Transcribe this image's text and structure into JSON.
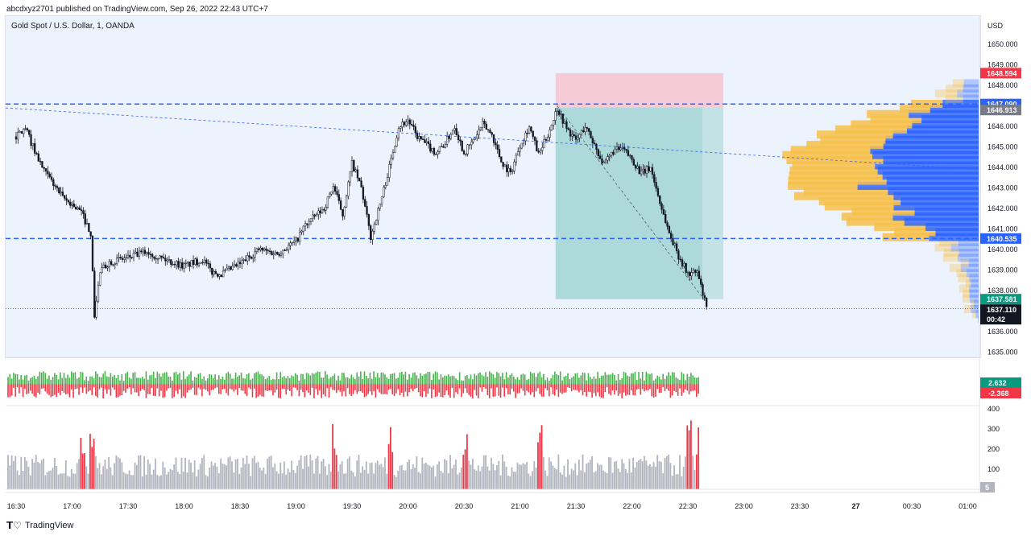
{
  "header": {
    "publisher_line": "abcdxyz2701 published on TradingView.com, Sep 26, 2022 22:43 UTC+7",
    "symbol_line": "Gold Spot / U.S. Dollar, 1, OANDA",
    "currency": "USD"
  },
  "footer": {
    "brand": "TradingView",
    "logo": "tradingview-logo-icon"
  },
  "colors": {
    "up": "#089981",
    "down": "#f23645",
    "candle": "#131722",
    "dashed_level": "#2962ff",
    "profile_up": "#2962ff",
    "profile_down": "#f7c04a",
    "stop_zone": "#f5c6d3",
    "target_zone": "#9ed3d3",
    "bg": "#edf3fd"
  },
  "price_axis": {
    "ticks": [
      "1650.000",
      "1649.000",
      "1648.000",
      "1647.000",
      "1646.000",
      "1645.000",
      "1644.000",
      "1643.000",
      "1642.000",
      "1641.000",
      "1640.000",
      "1639.000",
      "1638.000",
      "1637.000",
      "1636.000",
      "1635.000"
    ],
    "tags": [
      {
        "label": "1648.594",
        "color": "#f23645"
      },
      {
        "label": "1647.090",
        "color": "#2962ff"
      },
      {
        "label": "1646.913",
        "color": "#787b86"
      },
      {
        "label": "1640.535",
        "color": "#2962ff"
      },
      {
        "label": "1637.581",
        "color": "#089981"
      },
      {
        "label": "1637.110",
        "color": "#131722"
      },
      {
        "label": "00:42",
        "color": "#131722"
      }
    ]
  },
  "time_axis": [
    "16:30",
    "17:00",
    "17:30",
    "18:00",
    "18:30",
    "19:00",
    "19:30",
    "20:00",
    "20:30",
    "21:00",
    "21:30",
    "22:00",
    "22:30",
    "23:00",
    "23:30",
    "27",
    "00:30",
    "01:00"
  ],
  "oscillator": {
    "pos_label": "2.632",
    "neg_label": "-2.368"
  },
  "volume_axis": {
    "ticks": [
      "400",
      "300",
      "200",
      "100"
    ],
    "badge": "5"
  },
  "chart_data": {
    "type": "candlestick",
    "symbol": "Gold Spot / U.S. Dollar, 1, OANDA",
    "interval": "1",
    "ylim": [
      1635.0,
      1650.5
    ],
    "last_price": 1637.11,
    "levels": [
      {
        "kind": "horizontal_dashed",
        "price": 1647.09
      },
      {
        "kind": "horizontal_dashed",
        "price": 1640.535
      },
      {
        "kind": "last_price_dotted",
        "price": 1637.11
      }
    ],
    "short_position": {
      "entry": 1646.913,
      "stop": 1648.594,
      "target": 1637.581,
      "from_time": "21:20",
      "to_time": "22:45"
    },
    "price_path": [
      [
        "16:30",
        1645.5
      ],
      [
        "16:35",
        1645.9
      ],
      [
        "16:40",
        1644.8
      ],
      [
        "16:45",
        1643.8
      ],
      [
        "16:50",
        1643.2
      ],
      [
        "16:55",
        1642.5
      ],
      [
        "17:00",
        1642.2
      ],
      [
        "17:05",
        1641.8
      ],
      [
        "17:10",
        1640.8
      ],
      [
        "17:12",
        1636.8
      ],
      [
        "17:15",
        1638.9
      ],
      [
        "17:20",
        1639.4
      ],
      [
        "17:30",
        1639.6
      ],
      [
        "17:40",
        1639.9
      ],
      [
        "17:50",
        1639.5
      ],
      [
        "18:00",
        1639.2
      ],
      [
        "18:10",
        1639.5
      ],
      [
        "18:15",
        1638.9
      ],
      [
        "18:20",
        1638.8
      ],
      [
        "18:30",
        1639.3
      ],
      [
        "18:40",
        1640.0
      ],
      [
        "18:50",
        1639.8
      ],
      [
        "19:00",
        1640.4
      ],
      [
        "19:05",
        1641.2
      ],
      [
        "19:10",
        1641.6
      ],
      [
        "19:15",
        1642.0
      ],
      [
        "19:20",
        1643.1
      ],
      [
        "19:25",
        1641.7
      ],
      [
        "19:30",
        1644.2
      ],
      [
        "19:35",
        1643.0
      ],
      [
        "19:40",
        1640.6
      ],
      [
        "19:45",
        1642.2
      ],
      [
        "19:50",
        1644.0
      ],
      [
        "19:55",
        1646.0
      ],
      [
        "20:00",
        1646.3
      ],
      [
        "20:05",
        1645.5
      ],
      [
        "20:10",
        1645.1
      ],
      [
        "20:15",
        1644.7
      ],
      [
        "20:20",
        1645.2
      ],
      [
        "20:25",
        1646.0
      ],
      [
        "20:30",
        1644.7
      ],
      [
        "20:35",
        1645.3
      ],
      [
        "20:40",
        1646.1
      ],
      [
        "20:45",
        1645.6
      ],
      [
        "20:50",
        1644.3
      ],
      [
        "20:55",
        1643.7
      ],
      [
        "21:00",
        1645.1
      ],
      [
        "21:05",
        1646.0
      ],
      [
        "21:10",
        1644.6
      ],
      [
        "21:15",
        1645.6
      ],
      [
        "21:20",
        1646.9
      ],
      [
        "21:25",
        1645.9
      ],
      [
        "21:30",
        1645.3
      ],
      [
        "21:35",
        1646.0
      ],
      [
        "21:40",
        1645.1
      ],
      [
        "21:45",
        1644.1
      ],
      [
        "21:50",
        1644.8
      ],
      [
        "21:55",
        1644.9
      ],
      [
        "22:00",
        1644.4
      ],
      [
        "22:05",
        1643.7
      ],
      [
        "22:10",
        1644.0
      ],
      [
        "22:15",
        1642.3
      ],
      [
        "22:20",
        1640.8
      ],
      [
        "22:25",
        1639.7
      ],
      [
        "22:30",
        1638.8
      ],
      [
        "22:35",
        1638.9
      ],
      [
        "22:40",
        1637.11
      ]
    ],
    "oscillator_range": [
      -2.368,
      2.632
    ],
    "volume_ylim": [
      0,
      400
    ],
    "volume_highlights_red": [
      "17:10",
      "17:15",
      "19:25",
      "19:55",
      "20:35",
      "21:15",
      "22:35",
      "22:40"
    ]
  }
}
